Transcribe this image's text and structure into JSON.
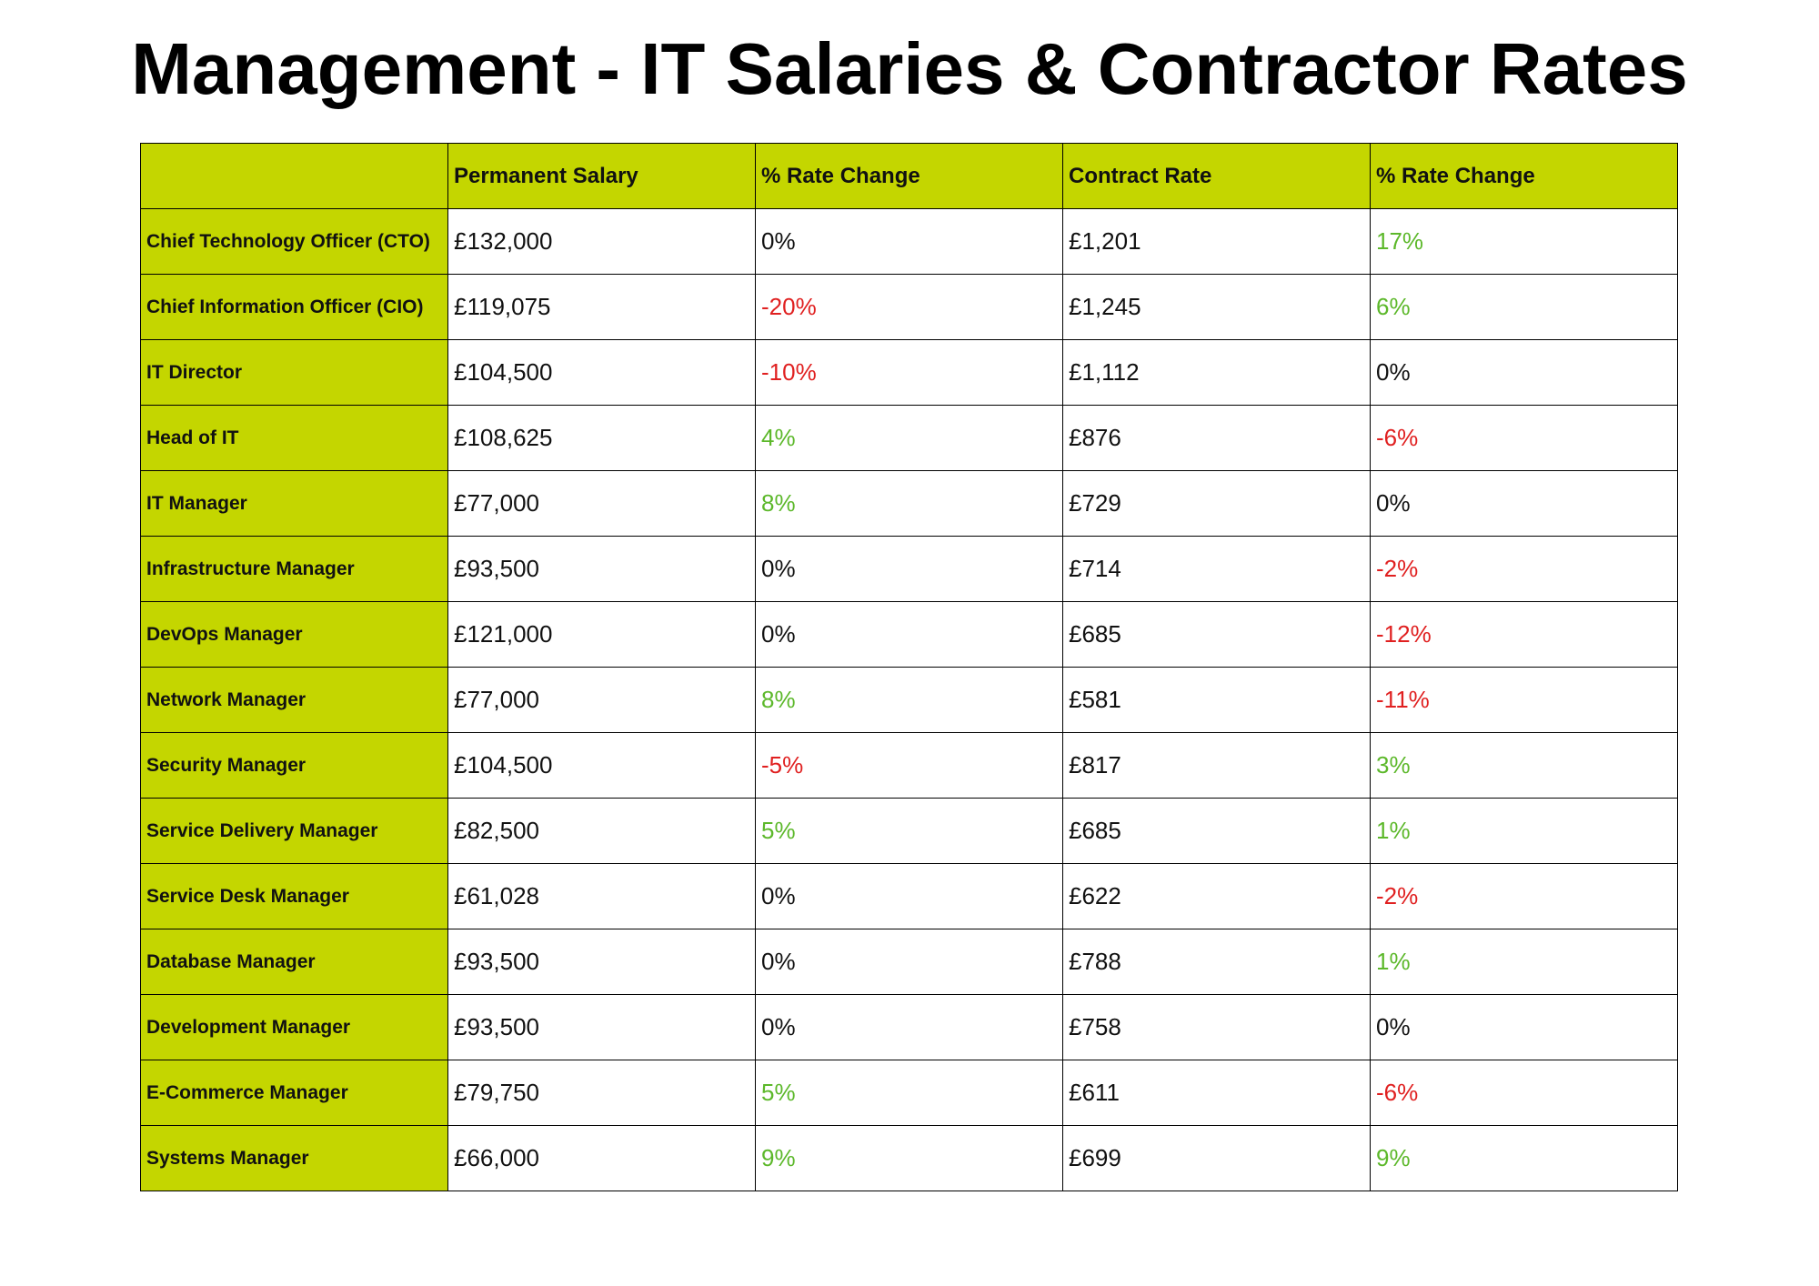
{
  "title": "Management - IT Salaries & Contractor Rates",
  "table": {
    "header": [
      "Permanent Salary",
      "% Rate Change",
      "Contract Rate",
      "% Rate Change"
    ],
    "rows": [
      [
        "Chief Technology Officer (CTO)",
        "£132,000",
        "0%",
        "£1,201",
        "17%"
      ],
      [
        "Chief Information Officer (CIO)",
        "£119,075",
        "-20%",
        "£1,245",
        "6%"
      ],
      [
        "IT Director",
        "£104,500",
        "-10%",
        "£1,112",
        "0%"
      ],
      [
        "Head of IT",
        "£108,625",
        "4%",
        "£876",
        "-6%"
      ],
      [
        "IT Manager",
        "£77,000",
        "8%",
        "£729",
        "0%"
      ],
      [
        "Infrastructure Manager",
        "£93,500",
        "0%",
        "£714",
        "-2%"
      ],
      [
        "DevOps Manager",
        "£121,000",
        "0%",
        "£685",
        "-12%"
      ],
      [
        "Network Manager",
        "£77,000",
        "8%",
        "£581",
        "-11%"
      ],
      [
        "Security Manager",
        "£104,500",
        "-5%",
        "£817",
        "3%"
      ],
      [
        "Service Delivery Manager",
        "£82,500",
        "5%",
        "£685",
        "1%"
      ],
      [
        "Service Desk Manager",
        "£61,028",
        "0%",
        "£622",
        "-2%"
      ],
      [
        "Database Manager",
        "£93,500",
        "0%",
        "£788",
        "1%"
      ],
      [
        "Development Manager",
        "£93,500",
        "0%",
        "£758",
        "0%"
      ],
      [
        "E-Commerce Manager",
        "£79,750",
        "5%",
        "£611",
        "-6%"
      ],
      [
        "Systems Manager",
        "£66,000",
        "9%",
        "£699",
        "9%"
      ]
    ]
  }
}
